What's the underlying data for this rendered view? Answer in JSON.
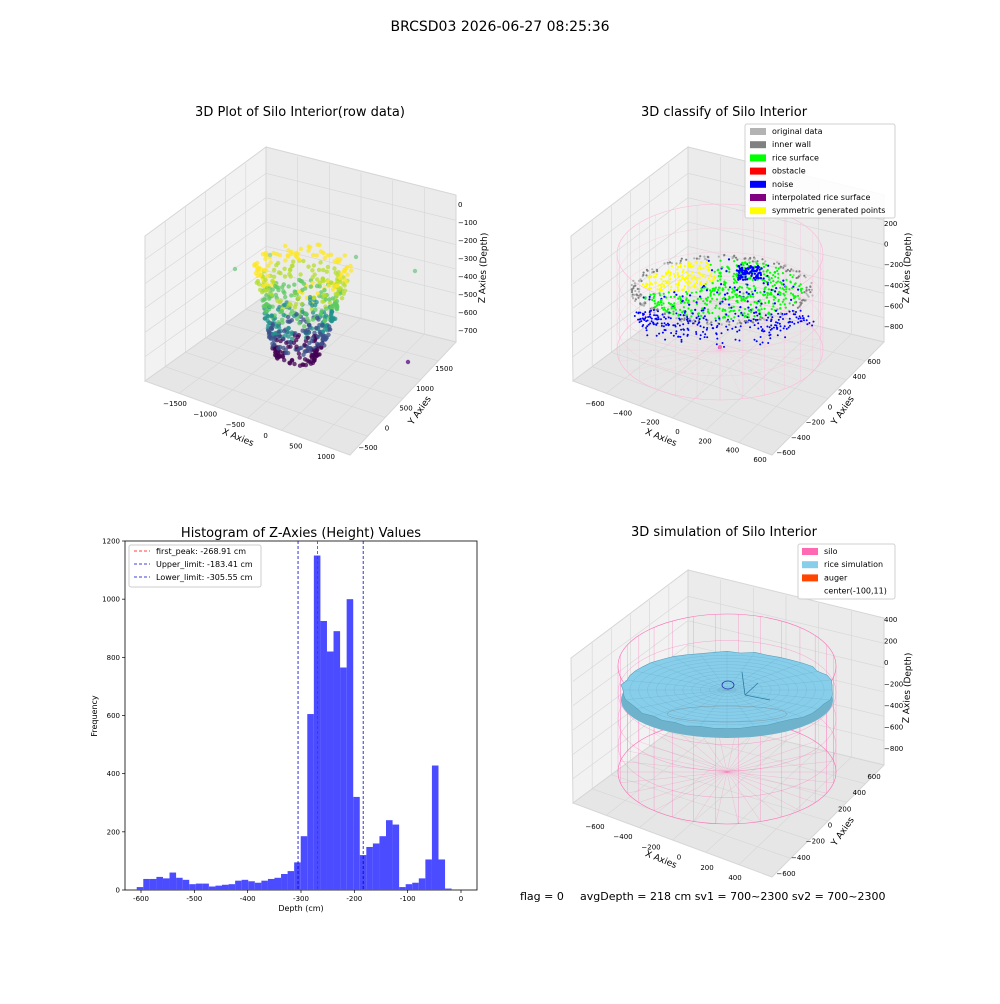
{
  "figure": {
    "suptitle": "BRCSD03 2026-06-27 08:25:36",
    "footer": {
      "flag": "flag = 0",
      "avg": "avgDepth = 218 cm  sv1 = 700~2300  sv2 = 700~2300"
    }
  },
  "colors": {
    "pane": "#f2f2f2",
    "grid": "#d6d6d6",
    "original": "#b3b3b3",
    "inner_wall": "#808080",
    "rice_surface": "#00ff00",
    "obstacle": "#ff0000",
    "noise": "#0000ff",
    "interpolated": "#800080",
    "symmetric": "#ffff00",
    "silo": "#ff69b4",
    "rice_sim": "#87ceeb",
    "auger": "#ff4500",
    "hist": "#4b4bff",
    "peak_line": "#ff0000",
    "limit_line": "#0000cc"
  },
  "chart_data": [
    {
      "type": "scatter",
      "title": "3D Plot of Silo Interior(row data)",
      "xlabel": "X Axies",
      "ylabel": "Y Axies",
      "zlabel": "Z Axies (Depth)",
      "x_ticks": [
        "−1500",
        "−1000",
        "−500",
        "0",
        "500",
        "1000"
      ],
      "y_ticks": [
        "−500",
        "0",
        "500",
        "1000",
        "1500"
      ],
      "z_ticks": [
        "0",
        "−100",
        "−200",
        "−300",
        "−400",
        "−500",
        "−600",
        "−700"
      ],
      "colormap": "viridis"
    },
    {
      "type": "scatter",
      "title": "3D classify of Silo Interior",
      "xlabel": "X Axies",
      "ylabel": "Y Axies",
      "zlabel": "Z Axies (Depth)",
      "x_ticks": [
        "−600",
        "−400",
        "−200",
        "0",
        "200",
        "400",
        "600"
      ],
      "y_ticks": [
        "−600",
        "−400",
        "−200",
        "0",
        "200",
        "400",
        "600"
      ],
      "z_ticks": [
        "200",
        "0",
        "−200",
        "−400",
        "−600",
        "−800"
      ],
      "legend": [
        {
          "label": "original data",
          "color": "#b3b3b3"
        },
        {
          "label": "inner wall",
          "color": "#808080"
        },
        {
          "label": "rice surface",
          "color": "#00ff00"
        },
        {
          "label": "obstacle",
          "color": "#ff0000"
        },
        {
          "label": "noise",
          "color": "#0000ff"
        },
        {
          "label": "interpolated rice surface",
          "color": "#800080"
        },
        {
          "label": "symmetric generated points",
          "color": "#ffff00"
        }
      ],
      "legend_loc": "top-right"
    },
    {
      "type": "bar",
      "title": "Histogram of Z-Axies (Height) Values",
      "xlabel": "Depth (cm)",
      "ylabel": "Frequency",
      "xlim": [
        -630,
        30
      ],
      "ylim": [
        0,
        1200
      ],
      "x_ticks": [
        -600,
        -500,
        -400,
        -300,
        -200,
        -100,
        0
      ],
      "y_ticks": [
        0,
        200,
        400,
        600,
        800,
        1000,
        1200
      ],
      "bin_width": 12.3,
      "bins_start": -608,
      "values": [
        10,
        38,
        38,
        45,
        40,
        60,
        42,
        35,
        20,
        22,
        22,
        12,
        15,
        18,
        20,
        32,
        35,
        30,
        25,
        32,
        38,
        42,
        55,
        65,
        95,
        185,
        605,
        1150,
        925,
        820,
        890,
        765,
        1000,
        320,
        120,
        148,
        160,
        185,
        240,
        225,
        10,
        20,
        25,
        40,
        105,
        428,
        105,
        5
      ],
      "lines": [
        {
          "label": "first_peak: -268.91 cm",
          "x": -268.91,
          "color": "#ff0000"
        },
        {
          "label": "Upper_limit: -183.41 cm",
          "x": -183.41,
          "color": "#0000cc"
        },
        {
          "label": "Lower_limit: -305.55 cm",
          "x": -305.55,
          "color": "#0000cc"
        }
      ],
      "legend_loc": "top-left"
    },
    {
      "type": "scatter",
      "title": "3D simulation of Silo Interior",
      "xlabel": "X Axies",
      "ylabel": "Y Axies",
      "zlabel": "Z Axies (Depth)",
      "x_ticks": [
        "−600",
        "−400",
        "−200",
        "0",
        "200",
        "400"
      ],
      "y_ticks": [
        "−600",
        "−400",
        "−200",
        "0",
        "200",
        "400",
        "600"
      ],
      "z_ticks": [
        "400",
        "200",
        "0",
        "−200",
        "−400",
        "−600",
        "−800"
      ],
      "legend": [
        {
          "label": "silo",
          "color": "#ff69b4"
        },
        {
          "label": "rice simulation",
          "color": "#87ceeb"
        },
        {
          "label": "auger",
          "color": "#ff4500"
        },
        {
          "label": "center(-100,11)",
          "color": ""
        }
      ],
      "legend_loc": "top-right"
    }
  ]
}
